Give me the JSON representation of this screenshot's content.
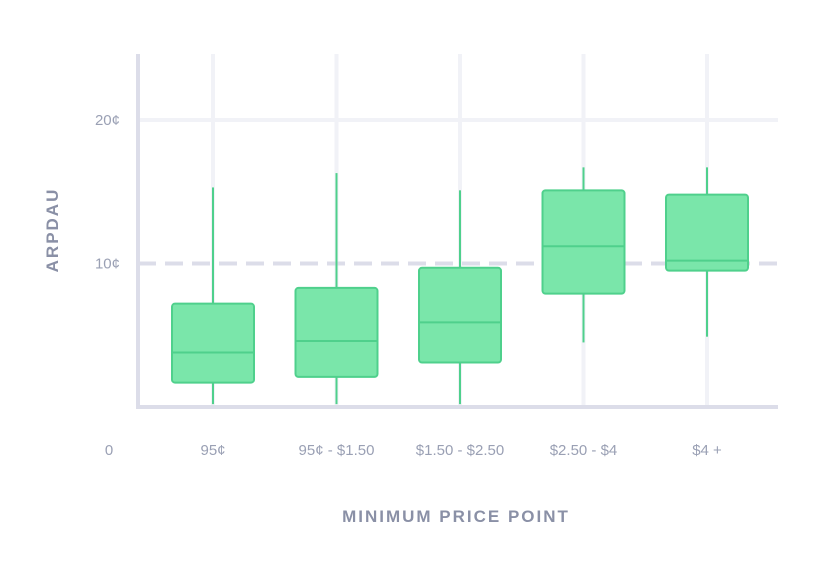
{
  "chart_data": {
    "type": "boxplot",
    "title": "",
    "xlabel": "MINIMUM PRICE POINT",
    "ylabel": "ARPDAU",
    "ylim": [
      0,
      25
    ],
    "y_ticks": [
      {
        "value": 20,
        "label": "20¢"
      },
      {
        "value": 10,
        "label": "10¢"
      }
    ],
    "origin_label": "0",
    "reference_line": 10,
    "grid": true,
    "categories": [
      "95¢",
      "95¢ - $1.50",
      "$1.50 - $2.50",
      "$2.50 - $4",
      "$4 +"
    ],
    "boxes": [
      {
        "category": "95¢",
        "min": 0.2,
        "q1": 1.7,
        "median": 3.8,
        "q3": 7.2,
        "max": 15.3
      },
      {
        "category": "95¢ - $1.50",
        "min": 0.2,
        "q1": 2.1,
        "median": 4.6,
        "q3": 8.3,
        "max": 16.3
      },
      {
        "category": "$1.50 - $2.50",
        "min": 0.2,
        "q1": 3.1,
        "median": 5.9,
        "q3": 9.7,
        "max": 15.1
      },
      {
        "category": "$2.50 - $4",
        "min": 4.5,
        "q1": 7.9,
        "median": 11.2,
        "q3": 15.1,
        "max": 16.7
      },
      {
        "category": "$4 +",
        "min": 4.9,
        "q1": 9.5,
        "median": 10.2,
        "q3": 14.8,
        "max": 16.7
      }
    ],
    "colors": {
      "box_fill": "#7ae6aa",
      "box_stroke": "#4fd08c",
      "whisker": "#4fd08c",
      "grid": "#f1f2f7",
      "axis": "#dcdde9",
      "reference_line": "#dcdde9"
    }
  }
}
